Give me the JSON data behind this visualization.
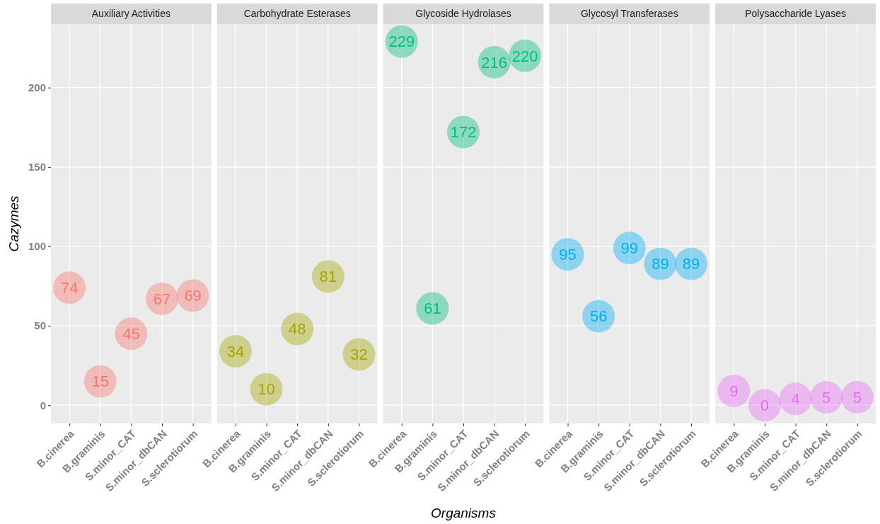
{
  "chart_data": [
    {
      "type": "scatter",
      "title": "Auxiliary Activities",
      "ylabel": "Cazymes",
      "categories": [
        "B.cinerea",
        "B.graminis",
        "S.minor_CAT",
        "S.minor_dbCAN",
        "S.sclerotiorum"
      ],
      "values": [
        74,
        15,
        45,
        67,
        69
      ],
      "color": "#f8766d",
      "marker": "circle",
      "data_labels": true,
      "ylim": [
        -11.5,
        240
      ],
      "yticks": [
        0,
        50,
        100,
        150,
        200
      ],
      "grid": true
    },
    {
      "type": "scatter",
      "title": "Carbohydrate Esterases",
      "categories": [
        "B.cinerea",
        "B.graminis",
        "S.minor_CAT",
        "S.minor_dbCAN",
        "S.sclerotiorum"
      ],
      "values": [
        34,
        10,
        48,
        81,
        32
      ],
      "color": "#a3a500",
      "marker": "circle",
      "data_labels": true,
      "ylim": [
        -11.5,
        240
      ],
      "yticks": [
        0,
        50,
        100,
        150,
        200
      ],
      "grid": true,
      "tick_labels": "x"
    },
    {
      "type": "scatter",
      "title": "Glycoside Hydrolases",
      "xlabel": "Organisms",
      "categories": [
        "B.cinerea",
        "B.graminis",
        "S.minor_CAT",
        "S.minor_dbCAN",
        "S.sclerotiorum"
      ],
      "values": [
        229,
        61,
        172,
        216,
        220
      ],
      "color": "#00bf7d",
      "marker": "circle",
      "data_labels": true,
      "ylim": [
        -11.5,
        240
      ],
      "yticks": [
        0,
        50,
        100,
        150,
        200
      ],
      "grid": true,
      "tick_labels": "x"
    },
    {
      "type": "scatter",
      "title": "Glycosyl Transferases",
      "categories": [
        "B.cinerea",
        "B.graminis",
        "S.minor_CAT",
        "S.minor_dbCAN",
        "S.sclerotiorum"
      ],
      "values": [
        95,
        56,
        99,
        89,
        89
      ],
      "color": "#00b0f6",
      "marker": "circle",
      "data_labels": true,
      "ylim": [
        -11.5,
        240
      ],
      "yticks": [
        0,
        50,
        100,
        150,
        200
      ],
      "grid": true,
      "tick_labels": "x"
    },
    {
      "type": "scatter",
      "title": "Polysaccharide Lyases",
      "categories": [
        "B.cinerea",
        "B.graminis",
        "S.minor_CAT",
        "S.minor_dbCAN",
        "S.sclerotiorum"
      ],
      "values": [
        9,
        0,
        4,
        5,
        5
      ],
      "color": "#e76bf3",
      "marker": "circle",
      "data_labels": true,
      "ylim": [
        -11.5,
        240
      ],
      "yticks": [
        0,
        50,
        100,
        150,
        200
      ],
      "grid": true,
      "tick_labels": "x"
    }
  ]
}
